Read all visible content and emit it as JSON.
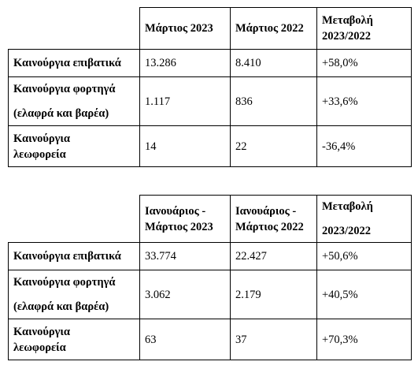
{
  "table1": {
    "headers": [
      "Μάρτιος 2023",
      "Μάρτιος 2022",
      "Μεταβολή",
      "2023/2022"
    ],
    "rows": [
      {
        "label": [
          "Καινούργια επιβατικά"
        ],
        "v2023": "13.286",
        "v2022": "8.410",
        "change": "+58,0%"
      },
      {
        "label": [
          "Καινούργια φορτηγά",
          "(ελαφρά και βαρέα)"
        ],
        "v2023": "1.117",
        "v2022": "836",
        "change": "+33,6%"
      },
      {
        "label": [
          "Καινούργια",
          "λεωφορεία"
        ],
        "v2023": "14",
        "v2022": "22",
        "change": "-36,4%"
      }
    ]
  },
  "table2": {
    "headers": [
      "Ιανουάριος -",
      "Μάρτιος 2023",
      "Ιανουάριος -",
      "Μάρτιος 2022",
      "Μεταβολή",
      "2023/2022"
    ],
    "rows": [
      {
        "label": [
          "Καινούργια επιβατικά"
        ],
        "v2023": "33.774",
        "v2022": "22.427",
        "change": "+50,6%"
      },
      {
        "label": [
          "Καινούργια φορτηγά",
          "(ελαφρά και βαρέα)"
        ],
        "v2023": "3.062",
        "v2022": "2.179",
        "change": "+40,5%"
      },
      {
        "label": [
          "Καινούργια",
          "λεωφορεία"
        ],
        "v2023": "63",
        "v2022": "37",
        "change": "+70,3%"
      }
    ]
  }
}
